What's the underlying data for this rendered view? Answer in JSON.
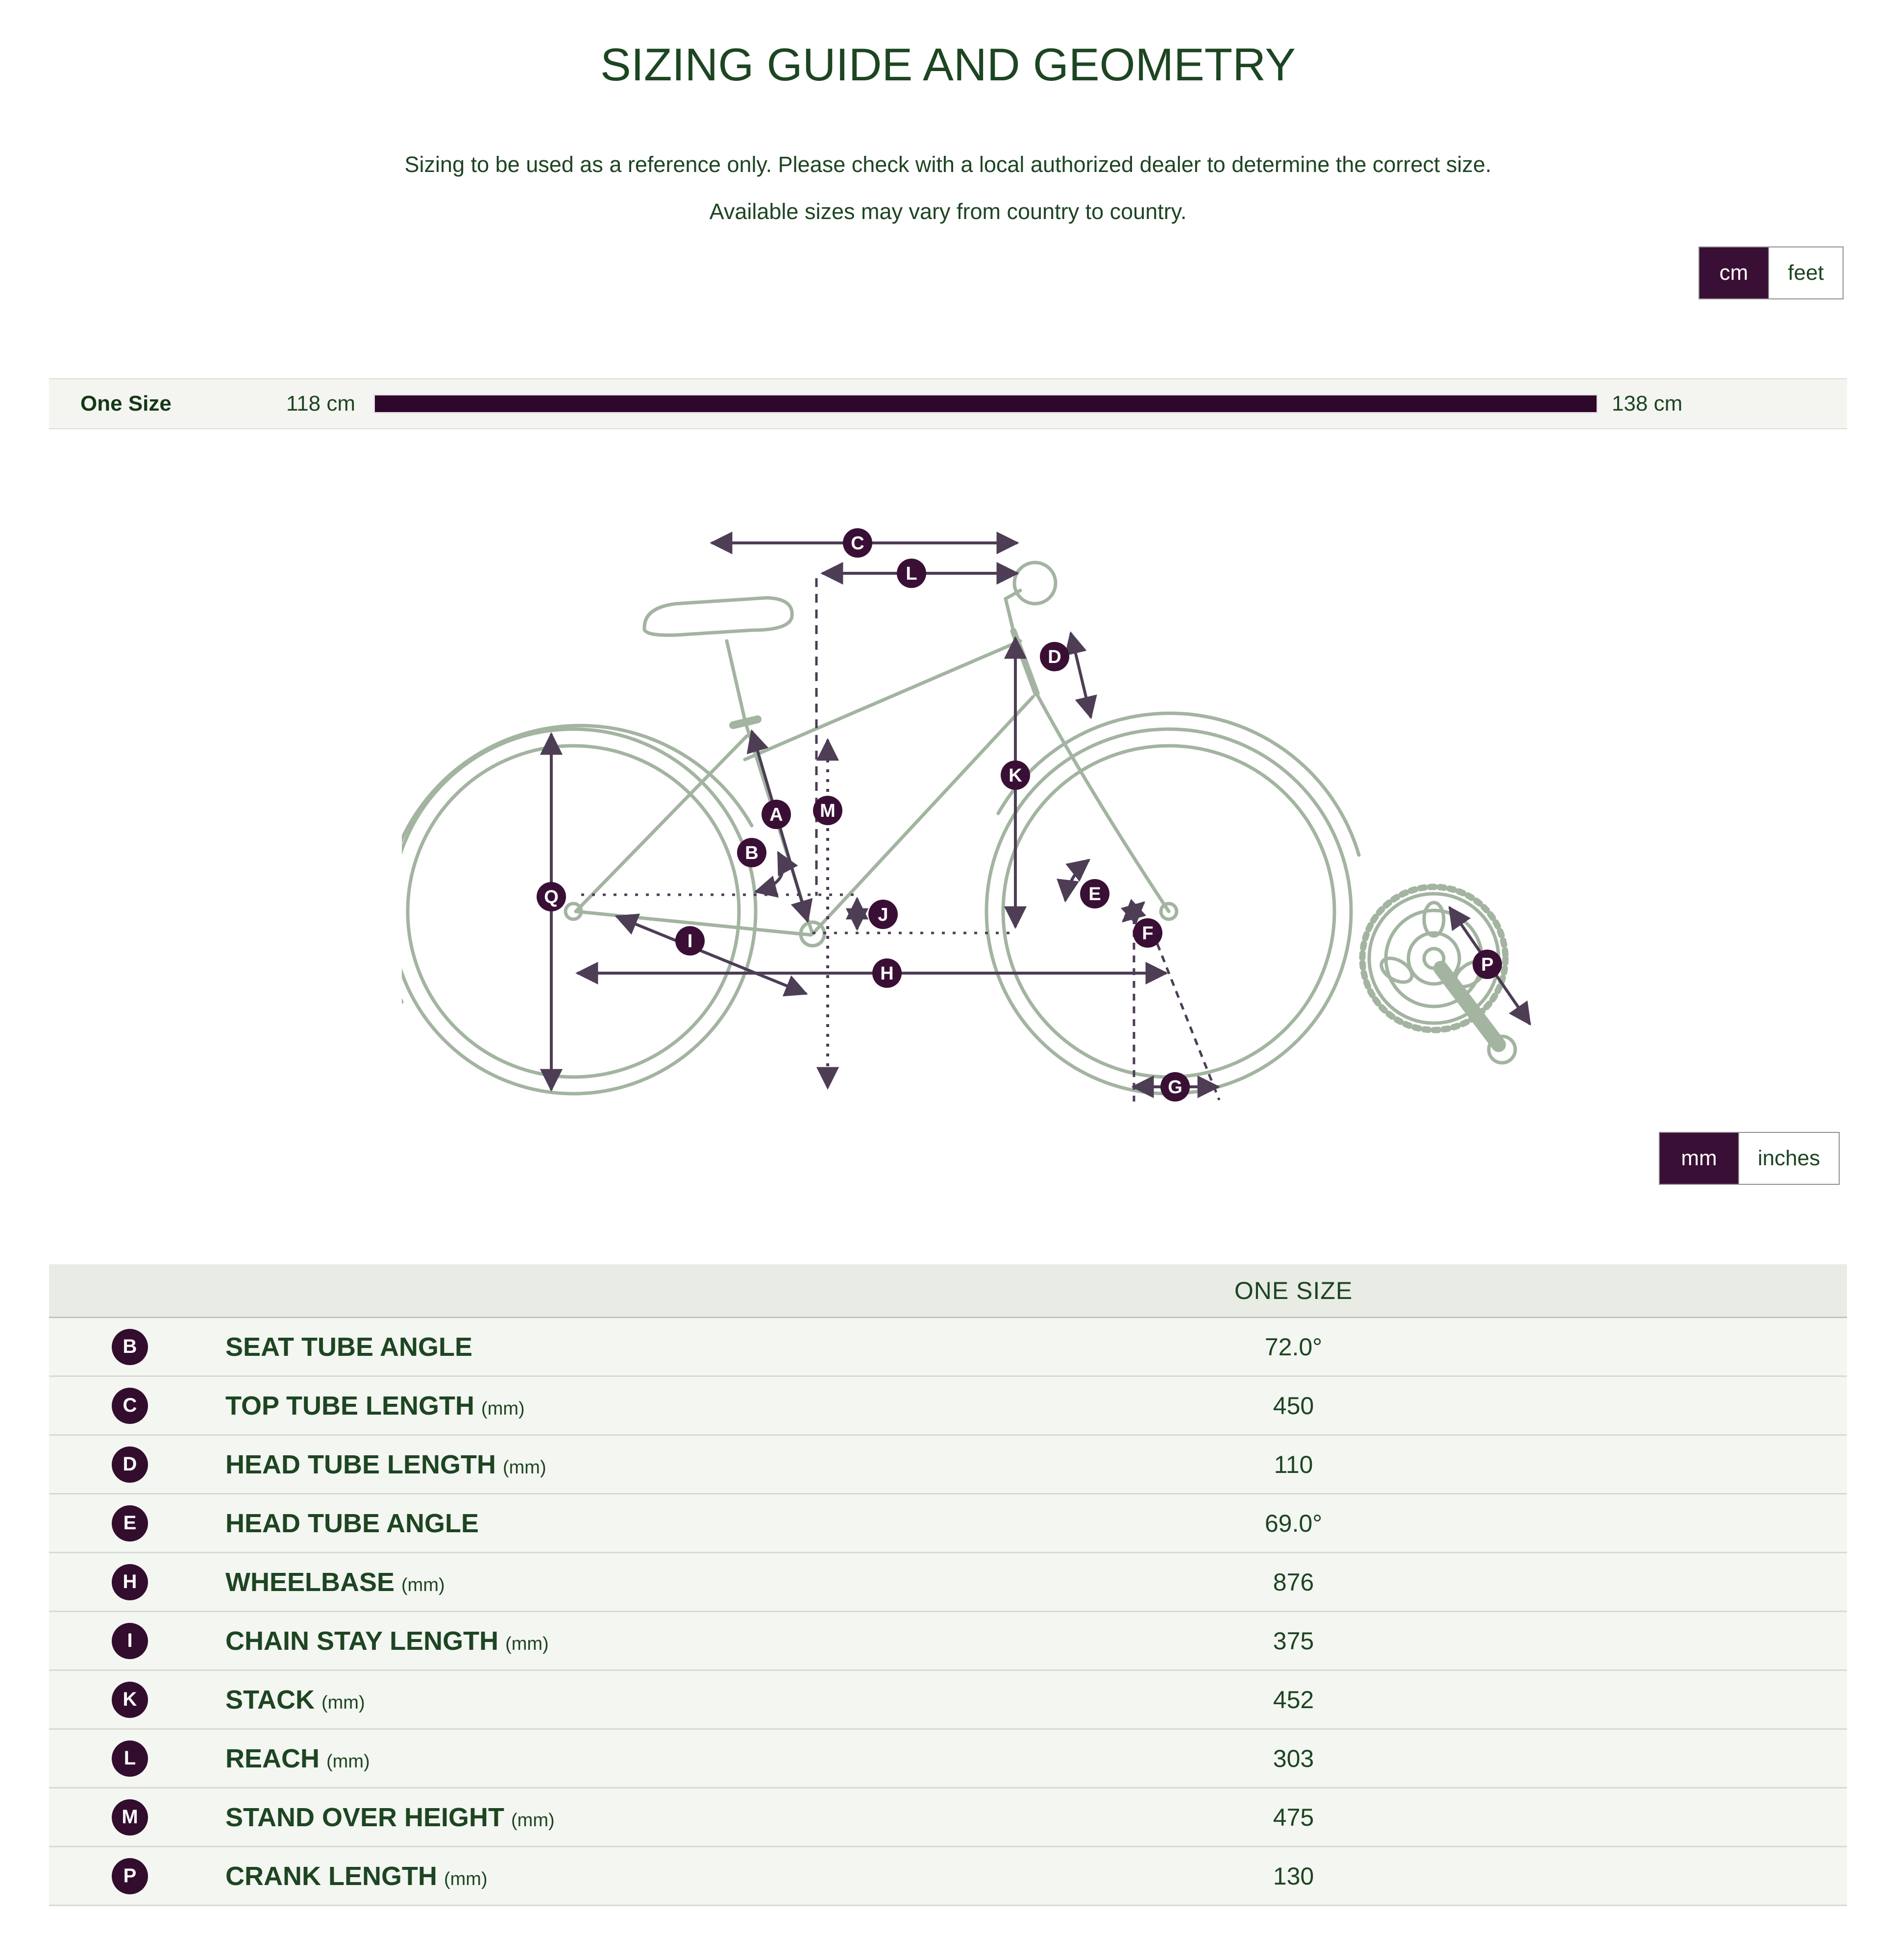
{
  "header": {
    "title": "SIZING GUIDE AND GEOMETRY",
    "subtitle_line1": "Sizing to be used as a reference only. Please check with a local authorized dealer to determine the correct size.",
    "subtitle_line2": "Available sizes may vary from country to country."
  },
  "height_toggle": {
    "options": [
      "cm",
      "feet"
    ],
    "selected": "cm"
  },
  "size_row": {
    "label": "One Size",
    "min": "118 cm",
    "max": "138 cm"
  },
  "unit_toggle": {
    "options": [
      "mm",
      "inches"
    ],
    "selected": "mm"
  },
  "diagram": {
    "markers": [
      "C",
      "L",
      "D",
      "K",
      "M",
      "A",
      "B",
      "Q",
      "J",
      "I",
      "H",
      "E",
      "F",
      "G",
      "P"
    ]
  },
  "table": {
    "column_header": "ONE SIZE",
    "rows": [
      {
        "letter": "B",
        "label": "SEAT TUBE ANGLE",
        "unit": "",
        "value": "72.0°"
      },
      {
        "letter": "C",
        "label": "TOP TUBE LENGTH",
        "unit": "(mm)",
        "value": "450"
      },
      {
        "letter": "D",
        "label": "HEAD TUBE LENGTH",
        "unit": "(mm)",
        "value": "110"
      },
      {
        "letter": "E",
        "label": "HEAD TUBE ANGLE",
        "unit": "",
        "value": "69.0°"
      },
      {
        "letter": "H",
        "label": "WHEELBASE",
        "unit": "(mm)",
        "value": "876"
      },
      {
        "letter": "I",
        "label": "CHAIN STAY LENGTH",
        "unit": "(mm)",
        "value": "375"
      },
      {
        "letter": "K",
        "label": "STACK",
        "unit": "(mm)",
        "value": "452"
      },
      {
        "letter": "L",
        "label": "REACH",
        "unit": "(mm)",
        "value": "303"
      },
      {
        "letter": "M",
        "label": "STAND OVER HEIGHT",
        "unit": "(mm)",
        "value": "475"
      },
      {
        "letter": "P",
        "label": "CRANK LENGTH",
        "unit": "(mm)",
        "value": "130"
      }
    ]
  },
  "colors": {
    "accent_purple": "#3a0f35",
    "text_green": "#1d4522",
    "bike_outline": "#a3b4a1",
    "arrow": "#4d3d55"
  }
}
